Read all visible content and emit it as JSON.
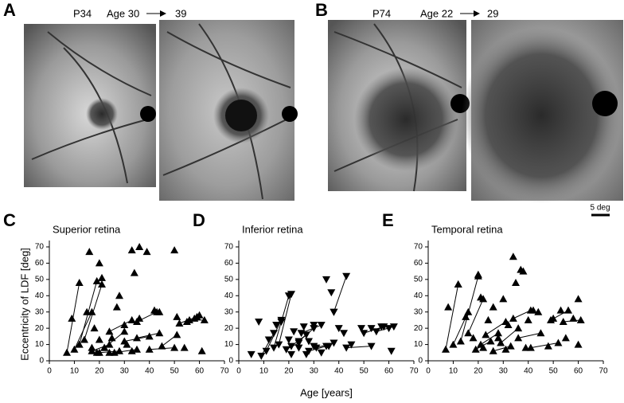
{
  "figure": {
    "panel_a": {
      "label": "A",
      "patient": "P34",
      "age_start": "Age 30",
      "age_end": "39"
    },
    "panel_b": {
      "label": "B",
      "patient": "P74",
      "age_start": "Age 22",
      "age_end": "29"
    },
    "scale_bar": "5 deg",
    "ylabel": "Eccentricity of LDF [deg]",
    "xlabel": "Age [years]"
  },
  "chart_data": [
    {
      "type": "scatter",
      "panel": "C",
      "title": "Superior retina",
      "marker": "triangle-up",
      "color": "#000000",
      "xlim": [
        0,
        70
      ],
      "xticks": [
        0,
        10,
        20,
        30,
        40,
        50,
        60,
        70
      ],
      "ylim": [
        0,
        70
      ],
      "yticks": [
        0,
        10,
        20,
        30,
        40,
        50,
        60,
        70
      ],
      "points": {
        "x": [
          9,
          16,
          15,
          18,
          20,
          21,
          20,
          22,
          25,
          24,
          27,
          28,
          30,
          31,
          33,
          34,
          36,
          39,
          33,
          36,
          42,
          44,
          50,
          51,
          55,
          58,
          60,
          61,
          54,
          19,
          17
        ],
        "y": [
          26,
          67,
          30,
          20,
          60,
          51,
          13,
          8,
          14,
          5,
          33,
          40,
          22,
          10,
          68,
          54,
          70,
          67,
          6,
          26,
          31,
          30,
          68,
          27,
          24,
          26,
          28,
          6,
          8,
          5,
          8
        ]
      },
      "follow_up": [
        {
          "x": [
            7,
            12
          ],
          "y": [
            5,
            48
          ]
        },
        {
          "x": [
            10,
            17
          ],
          "y": [
            7,
            30
          ]
        },
        {
          "x": [
            12,
            19
          ],
          "y": [
            10,
            49
          ]
        },
        {
          "x": [
            14,
            21
          ],
          "y": [
            13,
            47
          ]
        },
        {
          "x": [
            17,
            24
          ],
          "y": [
            6,
            10
          ]
        },
        {
          "x": [
            20,
            28
          ],
          "y": [
            5,
            6
          ]
        },
        {
          "x": [
            22,
            30
          ],
          "y": [
            8,
            18
          ]
        },
        {
          "x": [
            24,
            33
          ],
          "y": [
            18,
            25
          ]
        },
        {
          "x": [
            26,
            35
          ],
          "y": [
            5,
            7
          ]
        },
        {
          "x": [
            30,
            40
          ],
          "y": [
            12,
            15
          ]
        },
        {
          "x": [
            35,
            43
          ],
          "y": [
            24,
            30
          ]
        },
        {
          "x": [
            40,
            50
          ],
          "y": [
            7,
            8
          ]
        },
        {
          "x": [
            45,
            51
          ],
          "y": [
            9,
            16
          ]
        },
        {
          "x": [
            52,
            59
          ],
          "y": [
            23,
            27
          ]
        },
        {
          "x": [
            56,
            62
          ],
          "y": [
            25,
            25
          ]
        },
        {
          "x": [
            35,
            44
          ],
          "y": [
            14,
            17
          ]
        }
      ]
    },
    {
      "type": "scatter",
      "panel": "D",
      "title": "Inferior retina",
      "marker": "triangle-down",
      "color": "#000000",
      "xlim": [
        0,
        70
      ],
      "xticks": [
        0,
        10,
        20,
        30,
        40,
        50,
        60,
        70
      ],
      "ylim": [
        0,
        70
      ],
      "yticks": [
        0,
        10,
        20,
        30,
        40,
        50,
        60,
        70
      ],
      "points": {
        "x": [
          5,
          8,
          12,
          15,
          17,
          20,
          22,
          24,
          26,
          28,
          30,
          33,
          35,
          37,
          38,
          40,
          42,
          45,
          49,
          53,
          57,
          60,
          61,
          30,
          27,
          36,
          21
        ],
        "y": [
          4,
          24,
          13,
          22,
          24,
          13,
          18,
          8,
          21,
          12,
          9,
          5,
          50,
          42,
          30,
          20,
          17,
          10,
          20,
          20,
          21,
          20,
          6,
          22,
          4,
          9,
          4
        ]
      },
      "follow_up": [
        {
          "x": [
            9,
            14
          ],
          "y": [
            3,
            17
          ]
        },
        {
          "x": [
            11,
            17
          ],
          "y": [
            6,
            25
          ]
        },
        {
          "x": [
            14,
            20
          ],
          "y": [
            8,
            40
          ]
        },
        {
          "x": [
            16,
            21
          ],
          "y": [
            10,
            41
          ]
        },
        {
          "x": [
            19,
            24
          ],
          "y": [
            7,
            11
          ]
        },
        {
          "x": [
            21,
            27
          ],
          "y": [
            9,
            16
          ]
        },
        {
          "x": [
            24,
            30
          ],
          "y": [
            12,
            20
          ]
        },
        {
          "x": [
            25,
            33
          ],
          "y": [
            17,
            22
          ]
        },
        {
          "x": [
            28,
            35
          ],
          "y": [
            6,
            9
          ]
        },
        {
          "x": [
            31,
            38
          ],
          "y": [
            8,
            11
          ]
        },
        {
          "x": [
            38,
            43
          ],
          "y": [
            30,
            52
          ]
        },
        {
          "x": [
            43,
            53
          ],
          "y": [
            8,
            9
          ]
        },
        {
          "x": [
            50,
            58
          ],
          "y": [
            17,
            21
          ]
        },
        {
          "x": [
            55,
            62
          ],
          "y": [
            18,
            21
          ]
        }
      ]
    },
    {
      "type": "scatter",
      "panel": "E",
      "title": "Temporal retina",
      "marker": "triangle-up",
      "color": "#000000",
      "xlim": [
        0,
        70
      ],
      "xticks": [
        0,
        10,
        20,
        30,
        40,
        50,
        60,
        70
      ],
      "ylim": [
        0,
        70
      ],
      "yticks": [
        0,
        10,
        20,
        30,
        40,
        50,
        60,
        70
      ],
      "points": {
        "x": [
          8,
          12,
          15,
          18,
          20,
          21,
          22,
          24,
          26,
          28,
          30,
          32,
          34,
          35,
          37,
          38,
          40,
          42,
          44,
          48,
          50,
          53,
          55,
          58,
          60,
          60,
          39,
          31
        ],
        "y": [
          33,
          47,
          27,
          14,
          53,
          39,
          8,
          25,
          33,
          14,
          38,
          22,
          64,
          48,
          56,
          55,
          25,
          31,
          30,
          9,
          26,
          31,
          14,
          26,
          38,
          10,
          8,
          7
        ]
      },
      "follow_up": [
        {
          "x": [
            7,
            12
          ],
          "y": [
            7,
            47
          ]
        },
        {
          "x": [
            10,
            16
          ],
          "y": [
            10,
            30
          ]
        },
        {
          "x": [
            13,
            20
          ],
          "y": [
            12,
            52
          ]
        },
        {
          "x": [
            16,
            22
          ],
          "y": [
            17,
            38
          ]
        },
        {
          "x": [
            19,
            25
          ],
          "y": [
            7,
            12
          ]
        },
        {
          "x": [
            21,
            28
          ],
          "y": [
            10,
            17
          ]
        },
        {
          "x": [
            23,
            31
          ],
          "y": [
            16,
            24
          ]
        },
        {
          "x": [
            26,
            33
          ],
          "y": [
            6,
            9
          ]
        },
        {
          "x": [
            29,
            36
          ],
          "y": [
            11,
            20
          ]
        },
        {
          "x": [
            34,
            41
          ],
          "y": [
            26,
            31
          ]
        },
        {
          "x": [
            36,
            45
          ],
          "y": [
            14,
            17
          ]
        },
        {
          "x": [
            41,
            52
          ],
          "y": [
            8,
            11
          ]
        },
        {
          "x": [
            49,
            56
          ],
          "y": [
            25,
            31
          ]
        },
        {
          "x": [
            54,
            61
          ],
          "y": [
            24,
            25
          ]
        }
      ]
    }
  ]
}
